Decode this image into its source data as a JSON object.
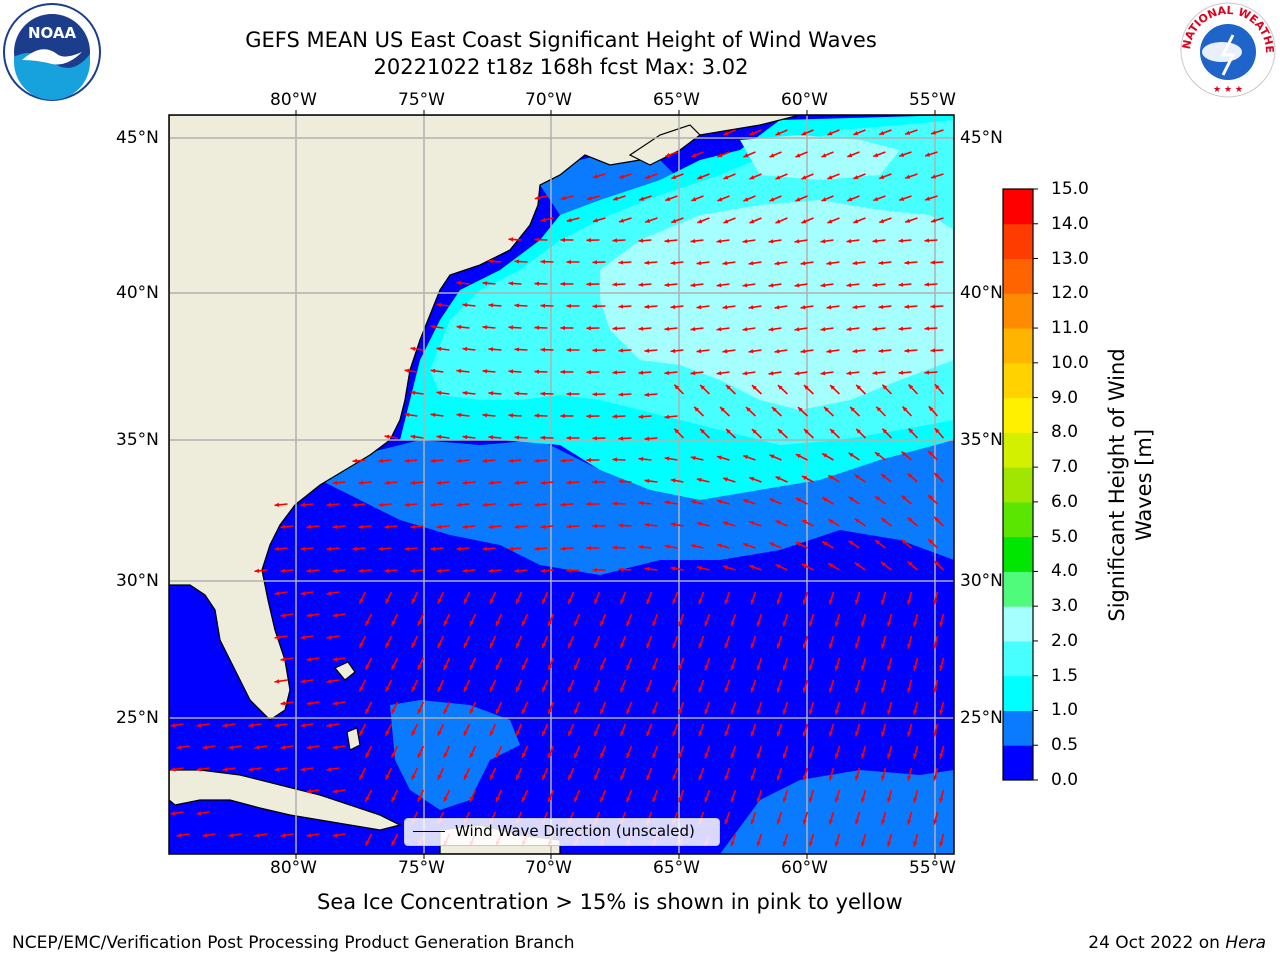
{
  "title": {
    "line1": "GEFS MEAN US East Coast Significant Height of Wind Waves",
    "line2": "20221022 t18z 168h fcst   Max: 3.02"
  },
  "logos": {
    "left": {
      "name": "noaa-logo",
      "text": "NOAA"
    },
    "right": {
      "name": "nws-logo",
      "text": "NATIONAL WEATHER SERVICE"
    }
  },
  "axes": {
    "lon_labels": [
      "80°W",
      "75°W",
      "70°W",
      "65°W",
      "60°W",
      "55°W"
    ],
    "lat_labels": [
      "45°N",
      "40°N",
      "35°N",
      "30°N",
      "25°N"
    ],
    "lon_range": [
      -85,
      -54.5
    ],
    "lat_range": [
      20.5,
      46.5
    ],
    "grid": true
  },
  "legend": {
    "label": "Wind Wave Direction (unscaled)"
  },
  "colorbar": {
    "label_line1": "Significant Height of Wind",
    "label_line2": "Waves [m]",
    "ticks": [
      "0.0",
      "0.5",
      "1.0",
      "1.5",
      "2.0",
      "3.0",
      "4.0",
      "5.0",
      "6.0",
      "7.0",
      "8.0",
      "9.0",
      "10.0",
      "11.0",
      "12.0",
      "13.0",
      "14.0",
      "15.0"
    ],
    "colors": [
      "#0000ff",
      "#0a7bff",
      "#00ffff",
      "#48ffff",
      "#a6ffff",
      "#50fa7a",
      "#00e600",
      "#5ae600",
      "#a0e600",
      "#d2f000",
      "#fff000",
      "#ffd200",
      "#ffb400",
      "#ff8c00",
      "#ff6400",
      "#ff3c00",
      "#ff0000"
    ]
  },
  "colors": {
    "land": "#eeecdb",
    "arrow": "#ff0000",
    "grid": "#b0b0b0"
  },
  "notes": {
    "sea_ice": "Sea Ice Concentration > 15% is shown in pink to yellow"
  },
  "footer": {
    "left": "NCEP/EMC/Verification Post Processing Product Generation Branch",
    "right_prefix": "24 Oct 2022 on ",
    "right_host": "Hera"
  }
}
